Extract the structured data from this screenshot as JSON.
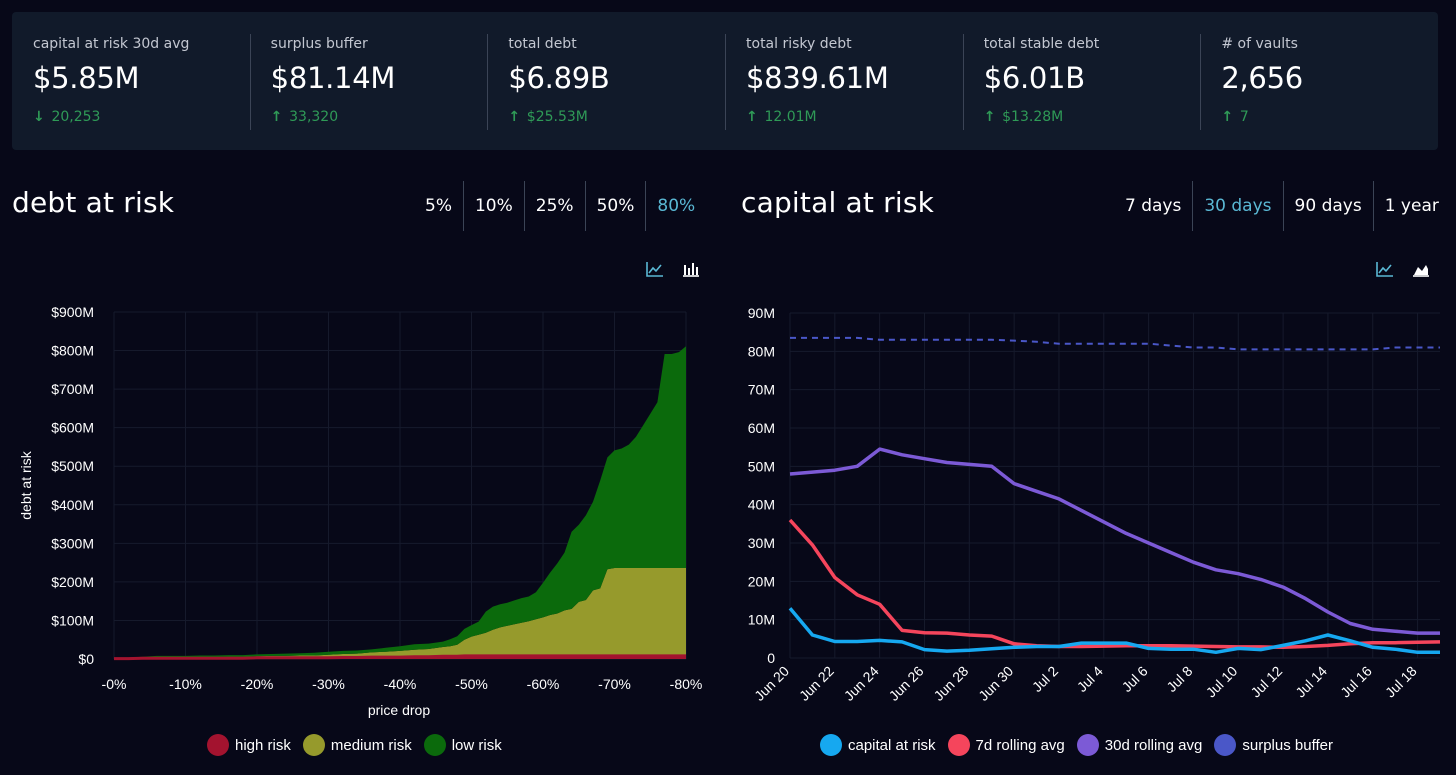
{
  "stats": [
    {
      "label": "capital at risk 30d avg",
      "value": "$5.85M",
      "direction": "down",
      "change": "20,253"
    },
    {
      "label": "surplus buffer",
      "value": "$81.14M",
      "direction": "up",
      "change": "33,320"
    },
    {
      "label": "total debt",
      "value": "$6.89B",
      "direction": "up",
      "change": "$25.53M"
    },
    {
      "label": "total risky debt",
      "value": "$839.61M",
      "direction": "up",
      "change": "12.01M"
    },
    {
      "label": "total stable debt",
      "value": "$6.01B",
      "direction": "up",
      "change": "$13.28M"
    },
    {
      "label": "# of vaults",
      "value": "2,656",
      "direction": "up",
      "change": "7"
    }
  ],
  "debt_panel": {
    "title": "debt at risk",
    "tabs": [
      "5%",
      "10%",
      "25%",
      "50%",
      "80%"
    ],
    "active_tab": "80%",
    "icons": [
      "line-chart-icon",
      "bar-chart-icon"
    ]
  },
  "capital_panel": {
    "title": "capital at risk",
    "tabs": [
      "7 days",
      "30 days",
      "90 days",
      "1 year"
    ],
    "active_tab": "30 days",
    "icons": [
      "line-chart-icon",
      "area-chart-icon"
    ]
  },
  "colors": {
    "high": "#a3132f",
    "medium": "#969a2c",
    "low": "#0b6a0c",
    "capital": "#16a8f0",
    "rolling7": "#f5455c",
    "rolling30": "#7c5ad6",
    "surplus": "#4a57c8",
    "accent": "#5ab8d4",
    "positive": "#2f9a57"
  },
  "chart_data": [
    {
      "type": "area",
      "stacked": true,
      "title": "",
      "xlabel": "price drop",
      "ylabel": "debt at risk",
      "x": [
        0,
        2,
        4,
        6,
        8,
        10,
        12,
        14,
        16,
        18,
        20,
        22,
        24,
        26,
        28,
        30,
        32,
        34,
        36,
        38,
        40,
        42,
        44,
        46,
        47,
        48,
        49,
        50,
        51,
        52,
        53,
        54,
        55,
        56,
        57,
        58,
        59,
        60,
        61,
        62,
        63,
        64,
        65,
        66,
        67,
        68,
        69,
        70,
        71,
        72,
        73,
        74,
        75,
        76,
        77,
        78,
        79,
        80
      ],
      "xticks": [
        "-0%",
        "-10%",
        "-20%",
        "-30%",
        "-40%",
        "-50%",
        "-60%",
        "-70%",
        "-80%"
      ],
      "xtick_values": [
        0,
        10,
        20,
        30,
        40,
        50,
        60,
        70,
        80
      ],
      "yticks": [
        "$0",
        "$100M",
        "$200M",
        "$300M",
        "$400M",
        "$500M",
        "$600M",
        "$700M",
        "$800M",
        "$900M"
      ],
      "ylim": [
        0,
        900
      ],
      "series": [
        {
          "name": "high risk",
          "values": [
            1,
            1,
            2,
            2,
            2,
            2,
            2,
            2,
            2,
            2,
            3,
            3,
            3,
            3,
            3,
            3,
            4,
            4,
            5,
            5,
            5,
            6,
            6,
            7,
            7,
            7,
            8,
            8,
            8,
            8,
            8,
            8,
            8,
            8,
            8,
            8,
            8,
            8,
            8,
            8,
            8,
            8,
            8,
            8,
            8,
            8,
            8,
            8,
            8,
            8,
            8,
            8,
            8,
            8,
            8,
            8,
            8,
            8
          ]
        },
        {
          "name": "medium risk",
          "values": [
            1,
            2,
            2,
            3,
            3,
            3,
            3,
            3,
            4,
            4,
            4,
            5,
            5,
            6,
            6,
            8,
            9,
            10,
            12,
            14,
            16,
            18,
            20,
            24,
            26,
            30,
            42,
            50,
            55,
            60,
            68,
            74,
            78,
            82,
            86,
            90,
            95,
            100,
            106,
            110,
            118,
            122,
            140,
            145,
            170,
            175,
            225,
            228,
            228,
            228,
            228,
            228,
            228,
            228,
            228,
            228,
            228,
            228
          ]
        },
        {
          "name": "low risk",
          "values": [
            0,
            1,
            2,
            3,
            3,
            3,
            4,
            4,
            4,
            4,
            5,
            5,
            6,
            6,
            7,
            8,
            8,
            8,
            8,
            10,
            12,
            14,
            14,
            14,
            18,
            22,
            28,
            30,
            34,
            55,
            60,
            60,
            60,
            62,
            64,
            64,
            70,
            90,
            110,
            130,
            150,
            200,
            200,
            220,
            230,
            280,
            290,
            305,
            310,
            320,
            340,
            370,
            400,
            430,
            555,
            555,
            560,
            575
          ]
        }
      ]
    },
    {
      "type": "line",
      "title": "",
      "xlabel": "",
      "ylabel": "",
      "x": [
        "Jun 20",
        "Jun 21",
        "Jun 22",
        "Jun 23",
        "Jun 24",
        "Jun 25",
        "Jun 26",
        "Jun 27",
        "Jun 28",
        "Jun 29",
        "Jun 30",
        "Jul 1",
        "Jul 2",
        "Jul 3",
        "Jul 4",
        "Jul 5",
        "Jul 6",
        "Jul 7",
        "Jul 8",
        "Jul 9",
        "Jul 10",
        "Jul 11",
        "Jul 12",
        "Jul 13",
        "Jul 14",
        "Jul 15",
        "Jul 16",
        "Jul 17",
        "Jul 18",
        "Jul 19"
      ],
      "xticks": [
        "Jun 20",
        "Jun 22",
        "Jun 24",
        "Jun 26",
        "Jun 28",
        "Jun 30",
        "Jul 2",
        "Jul 4",
        "Jul 6",
        "Jul 8",
        "Jul 10",
        "Jul 12",
        "Jul 14",
        "Jul 16",
        "Jul 18"
      ],
      "yticks": [
        "0",
        "10M",
        "20M",
        "30M",
        "40M",
        "50M",
        "60M",
        "70M",
        "80M",
        "90M"
      ],
      "ylim": [
        0,
        90
      ],
      "series": [
        {
          "name": "capital at risk",
          "values": [
            13,
            6,
            4.3,
            4.3,
            4.6,
            4.2,
            2.2,
            1.8,
            2.0,
            2.4,
            2.8,
            3.0,
            3.0,
            3.9,
            3.9,
            3.9,
            2.5,
            2.3,
            2.3,
            1.5,
            2.5,
            2.2,
            3.3,
            4.5,
            6.0,
            4.5,
            2.8,
            2.3,
            1.5,
            1.5
          ]
        },
        {
          "name": "7d rolling avg",
          "values": [
            36,
            29.5,
            21,
            16.5,
            14,
            7.2,
            6.6,
            6.5,
            6.0,
            5.7,
            3.7,
            3.2,
            3.0,
            3.0,
            3.1,
            3.2,
            3.2,
            3.2,
            3.1,
            3.0,
            2.9,
            2.9,
            2.8,
            3.0,
            3.3,
            3.7,
            4.0,
            4.0,
            4.1,
            4.2
          ]
        },
        {
          "name": "30d rolling avg",
          "values": [
            48,
            48.5,
            49,
            50,
            54.5,
            53,
            52,
            51,
            50.5,
            50,
            45.5,
            43.5,
            41.5,
            38.5,
            35.5,
            32.5,
            30,
            27.5,
            25,
            23,
            22,
            20.5,
            18.5,
            15.5,
            12,
            9,
            7.5,
            7,
            6.5,
            6.5
          ]
        },
        {
          "name": "surplus buffer",
          "dashed": true,
          "values": [
            83.5,
            83.5,
            83.5,
            83.5,
            83,
            83,
            83,
            83,
            83,
            83,
            82.8,
            82.5,
            82,
            82,
            82,
            82,
            82,
            81.5,
            81,
            81,
            80.5,
            80.5,
            80.5,
            80.5,
            80.5,
            80.5,
            80.5,
            81,
            81,
            81
          ]
        }
      ]
    }
  ]
}
